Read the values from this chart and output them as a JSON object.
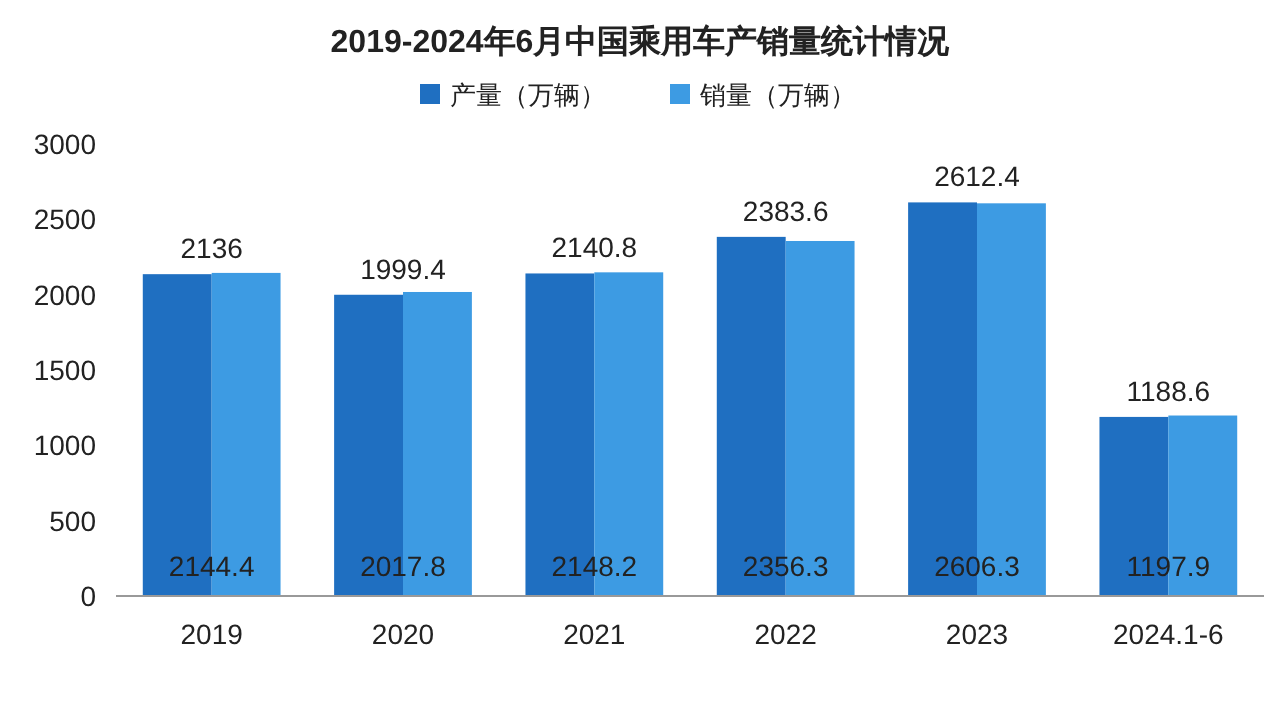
{
  "chart_data": {
    "type": "bar",
    "title": "2019-2024年6月中国乘用车产销量统计情况",
    "categories": [
      "2019",
      "2020",
      "2021",
      "2022",
      "2023",
      "2024.1-6"
    ],
    "series": [
      {
        "name": "产量（万辆）",
        "color": "#1f6fc1",
        "values": [
          2136,
          1999.4,
          2140.8,
          2383.6,
          2612.4,
          1188.6
        ]
      },
      {
        "name": "销量（万辆）",
        "color": "#3d9be3",
        "values": [
          2144.4,
          2017.8,
          2148.2,
          2356.3,
          2606.3,
          1197.9
        ]
      }
    ],
    "ylim": [
      0,
      3000
    ],
    "yticks": [
      0,
      500,
      1000,
      1500,
      2000,
      2500,
      3000
    ],
    "data_labels": true,
    "legend": "top"
  }
}
